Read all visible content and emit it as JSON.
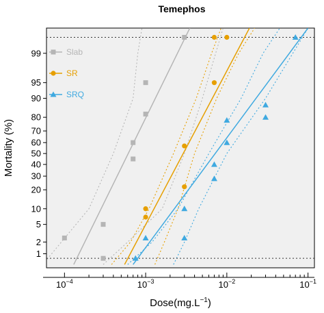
{
  "chart_data": {
    "type": "scatter",
    "title": "Temephos",
    "xlabel_main": "Dose(mg.L",
    "xlabel_sup": "−1",
    "xlabel_tail": ")",
    "ylabel": "Mortality (%)",
    "x_scale": "log",
    "y_scale": "probit",
    "xlim": [
      6e-05,
      0.12
    ],
    "ylim_percent": [
      0.4,
      99.82
    ],
    "x_ticks": [
      {
        "value": 0.0001,
        "base": "10",
        "exp": "−4"
      },
      {
        "value": 0.001,
        "base": "10",
        "exp": "−3"
      },
      {
        "value": 0.01,
        "base": "10",
        "exp": "−2"
      },
      {
        "value": 0.1,
        "base": "10",
        "exp": "−1"
      }
    ],
    "y_ticks": [
      1,
      2,
      5,
      10,
      20,
      30,
      40,
      50,
      60,
      70,
      80,
      90,
      95,
      99
    ],
    "y_tick_labels": [
      "1",
      "2",
      "5",
      "10",
      "20",
      "30",
      "40",
      "50",
      "60",
      "70",
      "80",
      "90",
      "95",
      "99"
    ],
    "reference_lines_percent": [
      0.75,
      99.65
    ],
    "legend_position": "top-left",
    "series": [
      {
        "name": "Slab",
        "marker": "square",
        "color": "#b5b5b5",
        "points": [
          {
            "x": 0.0001,
            "y": 2.5
          },
          {
            "x": 0.0003,
            "y": 5
          },
          {
            "x": 0.0003,
            "y": 0.75
          },
          {
            "x": 0.0007,
            "y": 45
          },
          {
            "x": 0.0007,
            "y": 60
          },
          {
            "x": 0.001,
            "y": 82
          },
          {
            "x": 0.001,
            "y": 95
          },
          {
            "x": 0.003,
            "y": 99.65
          }
        ],
        "fit": {
          "x1": 0.00013,
          "y1": 0.5,
          "x2": 0.0035,
          "y2": 99.82
        },
        "ci_lower": [
          [
            5.4e-05,
            0.5
          ],
          [
            0.0002,
            10
          ],
          [
            0.0004,
            50
          ],
          [
            0.0007,
            90
          ],
          [
            0.0008,
            99
          ],
          [
            0.0009,
            99.82
          ]
        ],
        "ci_upper": [
          [
            0.0003,
            0.5
          ],
          [
            0.0006,
            2
          ],
          [
            0.0016,
            10
          ],
          [
            0.003,
            50
          ],
          [
            0.005,
            90
          ],
          [
            0.009,
            99.82
          ]
        ]
      },
      {
        "name": "SR",
        "marker": "circle",
        "color": "#e69f00",
        "points": [
          {
            "x": 0.001,
            "y": 7
          },
          {
            "x": 0.001,
            "y": 10
          },
          {
            "x": 0.003,
            "y": 22
          },
          {
            "x": 0.003,
            "y": 57
          },
          {
            "x": 0.007,
            "y": 95
          },
          {
            "x": 0.007,
            "y": 99.65
          },
          {
            "x": 0.01,
            "y": 99.65
          }
        ],
        "fit": {
          "x1": 0.00055,
          "y1": 0.5,
          "x2": 0.019,
          "y2": 99.82
        },
        "ci_lower": [
          [
            0.00038,
            0.5
          ],
          [
            0.00065,
            2
          ],
          [
            0.0011,
            10
          ],
          [
            0.0022,
            50
          ],
          [
            0.0042,
            90
          ],
          [
            0.0065,
            99
          ],
          [
            0.0085,
            99.82
          ]
        ],
        "ci_upper": [
          [
            0.0013,
            0.5
          ],
          [
            0.0017,
            2
          ],
          [
            0.0025,
            10
          ],
          [
            0.004,
            50
          ],
          [
            0.0075,
            90
          ],
          [
            0.014,
            99
          ],
          [
            0.022,
            99.82
          ]
        ]
      },
      {
        "name": "SRQ",
        "marker": "triangle",
        "color": "#3fa9e0",
        "points": [
          {
            "x": 0.00075,
            "y": 0.75
          },
          {
            "x": 0.001,
            "y": 2.5
          },
          {
            "x": 0.003,
            "y": 2.5
          },
          {
            "x": 0.003,
            "y": 10
          },
          {
            "x": 0.007,
            "y": 28
          },
          {
            "x": 0.007,
            "y": 40
          },
          {
            "x": 0.01,
            "y": 60
          },
          {
            "x": 0.01,
            "y": 78
          },
          {
            "x": 0.03,
            "y": 80
          },
          {
            "x": 0.03,
            "y": 87
          },
          {
            "x": 0.07,
            "y": 99.65
          }
        ],
        "fit": {
          "x1": 0.0007,
          "y1": 0.5,
          "x2": 0.1,
          "y2": 99.82
        },
        "ci_lower": [
          [
            0.0006,
            0.5
          ],
          [
            0.0012,
            2
          ],
          [
            0.0025,
            10
          ],
          [
            0.006,
            50
          ],
          [
            0.015,
            90
          ],
          [
            0.028,
            99
          ],
          [
            0.045,
            99.82
          ]
        ],
        "ci_upper": [
          [
            0.0022,
            0.5
          ],
          [
            0.003,
            2
          ],
          [
            0.0045,
            10
          ],
          [
            0.01,
            50
          ],
          [
            0.03,
            90
          ],
          [
            0.065,
            99
          ],
          [
            0.1,
            99.82
          ]
        ]
      }
    ]
  }
}
